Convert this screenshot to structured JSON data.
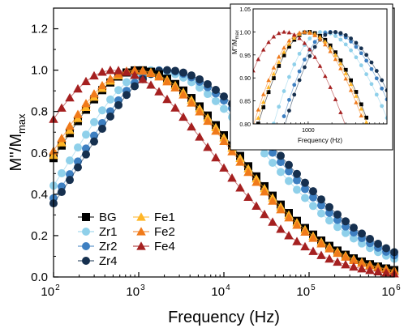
{
  "chart_data": [
    {
      "type": "scatter",
      "title": "",
      "xlabel": "Frequency (Hz)",
      "ylabel": "M''/M",
      "ylabel_sub": "max",
      "x_scale": "log",
      "xlim": [
        100,
        1000000
      ],
      "ylim": [
        0.0,
        1.3
      ],
      "x_ticks": [
        {
          "value": 100,
          "base": "10",
          "exp": "2"
        },
        {
          "value": 1000,
          "base": "10",
          "exp": "3"
        },
        {
          "value": 10000,
          "base": "10",
          "exp": "4"
        },
        {
          "value": 100000,
          "base": "10",
          "exp": "5"
        },
        {
          "value": 1000000,
          "base": "10",
          "exp": "6"
        }
      ],
      "y_ticks": [
        {
          "value": 0.0,
          "label": "0.0"
        },
        {
          "value": 0.2,
          "label": "0.2"
        },
        {
          "value": 0.4,
          "label": "0.4"
        },
        {
          "value": 0.6,
          "label": "0.6"
        },
        {
          "value": 0.8,
          "label": "0.8"
        },
        {
          "value": 1.0,
          "label": "1.0"
        },
        {
          "value": 1.2,
          "label": "1.2"
        }
      ],
      "grid": false,
      "legend_position": "bottom-left",
      "legend": [
        {
          "series": "BG",
          "label": "BG",
          "col": 0,
          "row": 0
        },
        {
          "series": "Fe1",
          "label": "Fe1",
          "col": 1,
          "row": 0
        },
        {
          "series": "Zr1",
          "label": "Zr1",
          "col": 0,
          "row": 1
        },
        {
          "series": "Fe2",
          "label": "Fe2",
          "col": 1,
          "row": 1
        },
        {
          "series": "Zr2",
          "label": "Zr2",
          "col": 0,
          "row": 2
        },
        {
          "series": "Fe4",
          "label": "Fe4",
          "col": 1,
          "row": 2
        },
        {
          "series": "Zr4",
          "label": "Zr4",
          "col": 0,
          "row": 3
        }
      ],
      "series": [
        {
          "name": "BG",
          "marker": "square",
          "color": "#000000",
          "peak_hz": 1000,
          "low_width": 0.95,
          "high_width": 1.15,
          "y_at_100": 0.39,
          "y_at_1e6": 0.08
        },
        {
          "name": "Zr1",
          "marker": "circle",
          "color": "#8fd0ea",
          "peak_hz": 1500,
          "low_width": 0.92,
          "high_width": 1.28,
          "y_at_100": 0.22,
          "y_at_1e6": 0.12
        },
        {
          "name": "Zr2",
          "marker": "circle",
          "color": "#3d7fc1",
          "peak_hz": 1900,
          "low_width": 0.92,
          "high_width": 1.28,
          "y_at_100": 0.2,
          "y_at_1e6": 0.13
        },
        {
          "name": "Zr4",
          "marker": "circle",
          "color": "#16304f",
          "peak_hz": 2100,
          "low_width": 0.92,
          "high_width": 1.3,
          "y_at_100": 0.18,
          "y_at_1e6": 0.13
        },
        {
          "name": "Fe1",
          "marker": "triangle",
          "color": "#ffb627",
          "peak_hz": 950,
          "low_width": 0.95,
          "high_width": 1.15,
          "y_at_100": 0.41,
          "y_at_1e6": 0.08
        },
        {
          "name": "Fe2",
          "marker": "triangle",
          "color": "#f07a1a",
          "peak_hz": 880,
          "low_width": 0.95,
          "high_width": 1.15,
          "y_at_100": 0.42,
          "y_at_1e6": 0.08
        },
        {
          "name": "Fe4",
          "marker": "triangle",
          "color": "#a52020",
          "peak_hz": 500,
          "low_width": 0.95,
          "high_width": 1.15,
          "y_at_100": 0.63,
          "y_at_1e6": 0.06
        }
      ]
    },
    {
      "type": "scatter",
      "title": "",
      "xlabel": "Frequency (Hz)",
      "ylabel": "M''/M",
      "ylabel_sub": "max",
      "x_scale": "log",
      "xlim": [
        200,
        10000
      ],
      "ylim": [
        0.8,
        1.05
      ],
      "x_ticks": [
        {
          "value": 1000,
          "label": "1000"
        }
      ],
      "y_ticks": [
        {
          "value": 0.8,
          "label": "0.80"
        },
        {
          "value": 0.85,
          "label": "0.85"
        },
        {
          "value": 0.9,
          "label": "0.90"
        },
        {
          "value": 0.95,
          "label": "0.95"
        },
        {
          "value": 1.0,
          "label": "1.00"
        },
        {
          "value": 1.05,
          "label": "1.05"
        }
      ],
      "grid": false,
      "note": "inset, top-right, zoom on peak region of the same series"
    }
  ]
}
